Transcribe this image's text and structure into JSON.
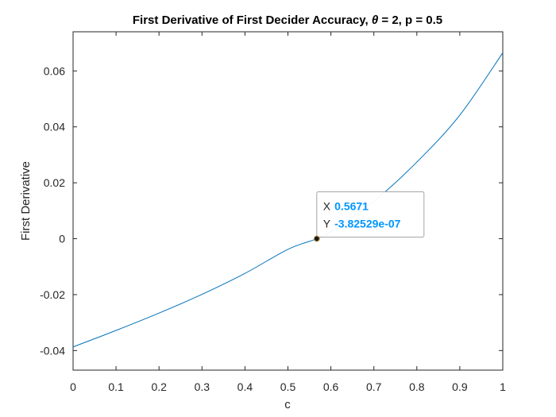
{
  "chart_data": {
    "type": "line",
    "title_prefix": "First Derivative of First Decider Accuracy, ",
    "title_symbol": "θ",
    "title_suffix": " = 2, p = 0.5",
    "xlabel": "c",
    "ylabel": "First Derivative",
    "xlim": [
      0,
      1
    ],
    "ylim": [
      -0.047,
      0.074
    ],
    "xticks": [
      0,
      0.1,
      0.2,
      0.3,
      0.4,
      0.5,
      0.6,
      0.7,
      0.8,
      0.9,
      1
    ],
    "xtick_labels": [
      "0",
      "0.1",
      "0.2",
      "0.3",
      "0.4",
      "0.5",
      "0.6",
      "0.7",
      "0.8",
      "0.9",
      "1"
    ],
    "yticks": [
      -0.04,
      -0.02,
      0,
      0.02,
      0.04,
      0.06
    ],
    "ytick_labels": [
      "-0.04",
      "-0.02",
      "0",
      "0.02",
      "0.04",
      "0.06"
    ],
    "grid": false,
    "series": [
      {
        "color": "#0072BD",
        "x": [
          0,
          0.1,
          0.2,
          0.3,
          0.4,
          0.5,
          0.5671,
          0.6,
          0.7,
          0.8,
          0.9,
          1.0
        ],
        "y": [
          -0.0387,
          -0.0328,
          -0.0266,
          -0.0199,
          -0.0124,
          -0.0038,
          0.0,
          0.0027,
          0.0134,
          0.0274,
          0.0442,
          0.0665
        ]
      }
    ],
    "datatip": {
      "x": 0.5671,
      "y": -3.82529e-07,
      "x_key": "X",
      "x_text": "0.5671",
      "y_key": "Y",
      "y_text": "-3.82529e-07",
      "value_color": "#0096FF"
    }
  }
}
